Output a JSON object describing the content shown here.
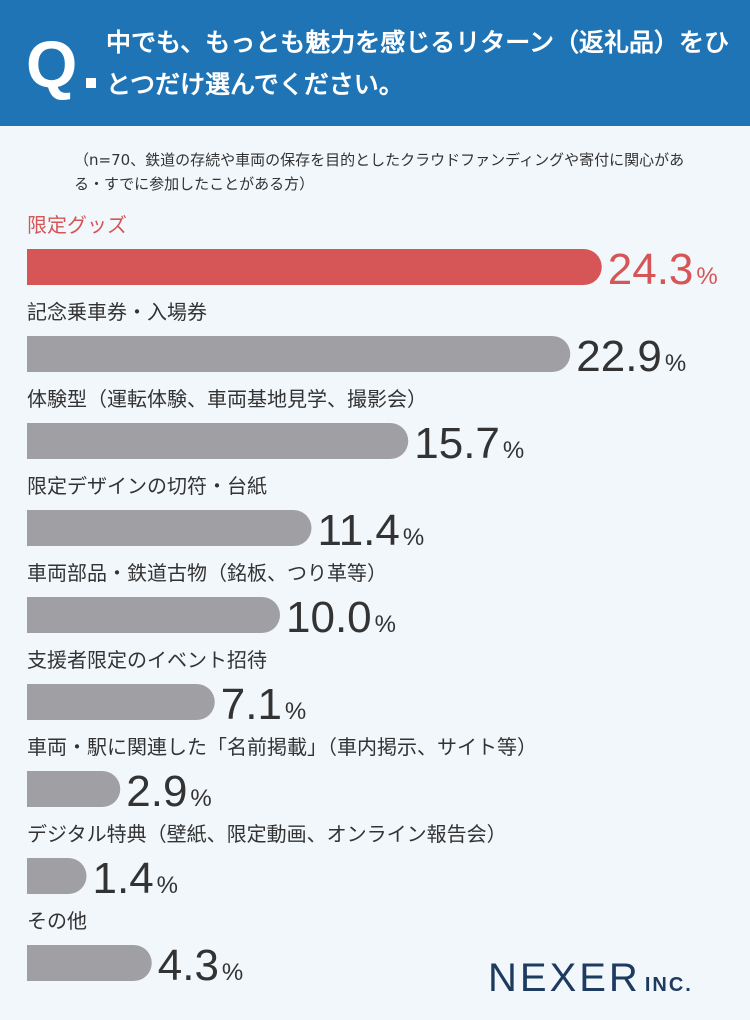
{
  "header": {
    "q_mark": "Q",
    "question": "中でも、もっとも魅力を感じるリターン（返礼品）をひとつだけ選んでください。"
  },
  "note": "（n=70、鉄道の存続や車両の保存を目的としたクラウドファンディングや寄付に関心がある・すでに参加したことがある方）",
  "logo": {
    "main": "NEXER",
    "inc": "INC."
  },
  "colors": {
    "header": "#1f74b6",
    "highlight": "#d65556",
    "bar": "#a0a0a4",
    "text": "#333333"
  },
  "chart_data": {
    "type": "bar",
    "orientation": "horizontal",
    "unit": "%",
    "categories": [
      "限定グッズ",
      "記念乗車券・入場券",
      "体験型（運転体験、車両基地見学、撮影会）",
      "限定デザインの切符・台紙",
      "車両部品・鉄道古物（銘板、つり革等）",
      "支援者限定のイベント招待",
      "車両・駅に関連した「名前掲載」（車内掲示、サイト等）",
      "デジタル特典（壁紙、限定動画、オンライン報告会）",
      "その他"
    ],
    "values": [
      24.3,
      22.9,
      15.7,
      11.4,
      10.0,
      7.1,
      2.9,
      1.4,
      4.3
    ],
    "labels": [
      "24.3",
      "22.9",
      "15.7",
      "11.4",
      "10.0",
      "7.1",
      "2.9",
      "1.4",
      "4.3"
    ],
    "highlight_index": 0
  }
}
